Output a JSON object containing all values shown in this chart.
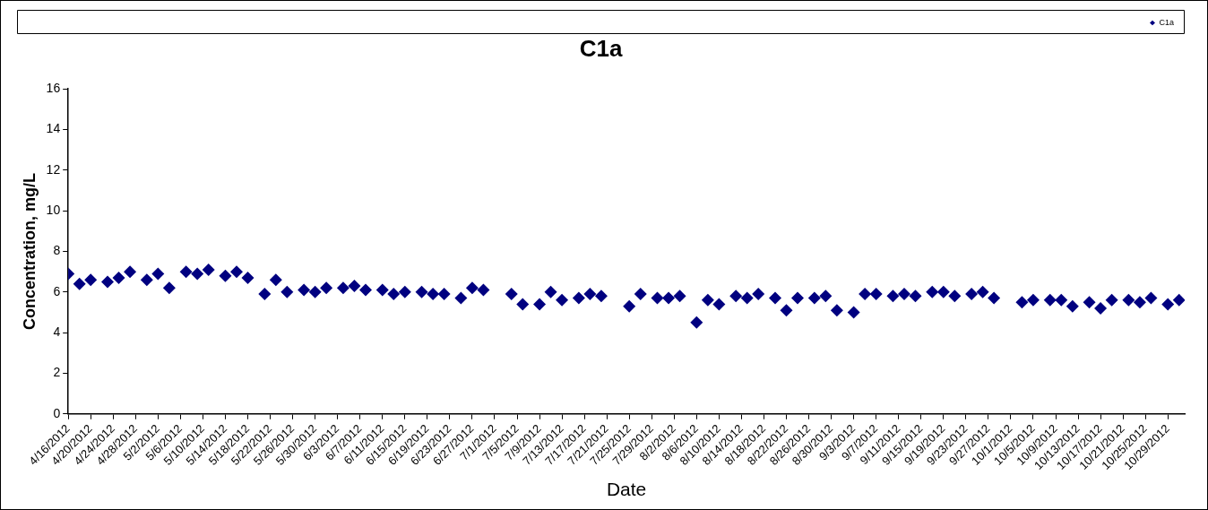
{
  "chart_data": {
    "type": "scatter",
    "title": "C1a",
    "xlabel": "Date",
    "ylabel": "Concentration, mg/L",
    "x": [
      "2012-04-16",
      "2012-04-18",
      "2012-04-20",
      "2012-04-23",
      "2012-04-25",
      "2012-04-27",
      "2012-04-30",
      "2012-05-02",
      "2012-05-04",
      "2012-05-07",
      "2012-05-09",
      "2012-05-11",
      "2012-05-14",
      "2012-05-16",
      "2012-05-18",
      "2012-05-21",
      "2012-05-23",
      "2012-05-25",
      "2012-05-28",
      "2012-05-30",
      "2012-06-01",
      "2012-06-04",
      "2012-06-06",
      "2012-06-08",
      "2012-06-11",
      "2012-06-13",
      "2012-06-15",
      "2012-06-18",
      "2012-06-20",
      "2012-06-22",
      "2012-06-25",
      "2012-06-27",
      "2012-06-29",
      "2012-07-04",
      "2012-07-06",
      "2012-07-09",
      "2012-07-11",
      "2012-07-13",
      "2012-07-16",
      "2012-07-18",
      "2012-07-20",
      "2012-07-25",
      "2012-07-27",
      "2012-07-30",
      "2012-08-01",
      "2012-08-03",
      "2012-08-06",
      "2012-08-08",
      "2012-08-10",
      "2012-08-13",
      "2012-08-15",
      "2012-08-17",
      "2012-08-20",
      "2012-08-22",
      "2012-08-24",
      "2012-08-27",
      "2012-08-29",
      "2012-08-31",
      "2012-09-03",
      "2012-09-05",
      "2012-09-07",
      "2012-09-10",
      "2012-09-12",
      "2012-09-14",
      "2012-09-17",
      "2012-09-19",
      "2012-09-21",
      "2012-09-24",
      "2012-09-26",
      "2012-09-28",
      "2012-10-03",
      "2012-10-05",
      "2012-10-08",
      "2012-10-10",
      "2012-10-12",
      "2012-10-15",
      "2012-10-17",
      "2012-10-19",
      "2012-10-22",
      "2012-10-24",
      "2012-10-26",
      "2012-10-29",
      "2012-10-31"
    ],
    "series": [
      {
        "name": "C1a",
        "color": "#000080",
        "values": [
          6.9,
          6.4,
          6.6,
          6.5,
          6.7,
          7.0,
          6.6,
          6.9,
          6.2,
          7.0,
          6.9,
          7.1,
          6.8,
          7.0,
          6.7,
          5.9,
          6.6,
          6.0,
          6.1,
          6.0,
          6.2,
          6.2,
          6.3,
          6.1,
          6.1,
          5.9,
          6.0,
          6.0,
          5.9,
          5.9,
          5.7,
          6.2,
          6.1,
          5.9,
          5.4,
          5.4,
          6.0,
          5.6,
          5.7,
          5.9,
          5.8,
          5.3,
          5.9,
          5.7,
          5.7,
          5.8,
          4.5,
          5.6,
          5.4,
          5.8,
          5.7,
          5.9,
          5.7,
          5.1,
          5.7,
          5.7,
          5.8,
          5.1,
          5.0,
          5.9,
          5.9,
          5.8,
          5.9,
          5.8,
          6.0,
          6.0,
          5.8,
          5.9,
          6.0,
          5.7,
          5.5,
          5.6,
          5.6,
          5.6,
          5.3,
          5.5,
          5.2,
          5.6,
          5.6,
          5.5,
          5.7,
          5.4,
          5.6
        ]
      }
    ],
    "xlim": [
      "2012-04-16",
      "2012-11-01"
    ],
    "xticks": [
      {
        "value": "2012-04-16",
        "label": "4/16/2012"
      },
      {
        "value": "2012-04-20",
        "label": "4/20/2012"
      },
      {
        "value": "2012-04-24",
        "label": "4/24/2012"
      },
      {
        "value": "2012-04-28",
        "label": "4/28/2012"
      },
      {
        "value": "2012-05-02",
        "label": "5/2/2012"
      },
      {
        "value": "2012-05-06",
        "label": "5/6/2012"
      },
      {
        "value": "2012-05-10",
        "label": "5/10/2012"
      },
      {
        "value": "2012-05-14",
        "label": "5/14/2012"
      },
      {
        "value": "2012-05-18",
        "label": "5/18/2012"
      },
      {
        "value": "2012-05-22",
        "label": "5/22/2012"
      },
      {
        "value": "2012-05-26",
        "label": "5/26/2012"
      },
      {
        "value": "2012-05-30",
        "label": "5/30/2012"
      },
      {
        "value": "2012-06-03",
        "label": "6/3/2012"
      },
      {
        "value": "2012-06-07",
        "label": "6/7/2012"
      },
      {
        "value": "2012-06-11",
        "label": "6/11/2012"
      },
      {
        "value": "2012-06-15",
        "label": "6/15/2012"
      },
      {
        "value": "2012-06-19",
        "label": "6/19/2012"
      },
      {
        "value": "2012-06-23",
        "label": "6/23/2012"
      },
      {
        "value": "2012-06-27",
        "label": "6/27/2012"
      },
      {
        "value": "2012-07-01",
        "label": "7/1/2012"
      },
      {
        "value": "2012-07-05",
        "label": "7/5/2012"
      },
      {
        "value": "2012-07-09",
        "label": "7/9/2012"
      },
      {
        "value": "2012-07-13",
        "label": "7/13/2012"
      },
      {
        "value": "2012-07-17",
        "label": "7/17/2012"
      },
      {
        "value": "2012-07-21",
        "label": "7/21/2012"
      },
      {
        "value": "2012-07-25",
        "label": "7/25/2012"
      },
      {
        "value": "2012-07-29",
        "label": "7/29/2012"
      },
      {
        "value": "2012-08-02",
        "label": "8/2/2012"
      },
      {
        "value": "2012-08-06",
        "label": "8/6/2012"
      },
      {
        "value": "2012-08-10",
        "label": "8/10/2012"
      },
      {
        "value": "2012-08-14",
        "label": "8/14/2012"
      },
      {
        "value": "2012-08-18",
        "label": "8/18/2012"
      },
      {
        "value": "2012-08-22",
        "label": "8/22/2012"
      },
      {
        "value": "2012-08-26",
        "label": "8/26/2012"
      },
      {
        "value": "2012-08-30",
        "label": "8/30/2012"
      },
      {
        "value": "2012-09-03",
        "label": "9/3/2012"
      },
      {
        "value": "2012-09-07",
        "label": "9/7/2012"
      },
      {
        "value": "2012-09-11",
        "label": "9/11/2012"
      },
      {
        "value": "2012-09-15",
        "label": "9/15/2012"
      },
      {
        "value": "2012-09-19",
        "label": "9/19/2012"
      },
      {
        "value": "2012-09-23",
        "label": "9/23/2012"
      },
      {
        "value": "2012-09-27",
        "label": "9/27/2012"
      },
      {
        "value": "2012-10-01",
        "label": "10/1/2012"
      },
      {
        "value": "2012-10-05",
        "label": "10/5/2012"
      },
      {
        "value": "2012-10-09",
        "label": "10/9/2012"
      },
      {
        "value": "2012-10-13",
        "label": "10/13/2012"
      },
      {
        "value": "2012-10-17",
        "label": "10/17/2012"
      },
      {
        "value": "2012-10-21",
        "label": "10/21/2012"
      },
      {
        "value": "2012-10-25",
        "label": "10/25/2012"
      },
      {
        "value": "2012-10-29",
        "label": "10/29/2012"
      }
    ],
    "ylim": [
      0,
      16
    ],
    "yticks": [
      0,
      2,
      4,
      6,
      8,
      10,
      12,
      14,
      16
    ],
    "grid": false,
    "legend": "top right",
    "marker": "diamond"
  }
}
